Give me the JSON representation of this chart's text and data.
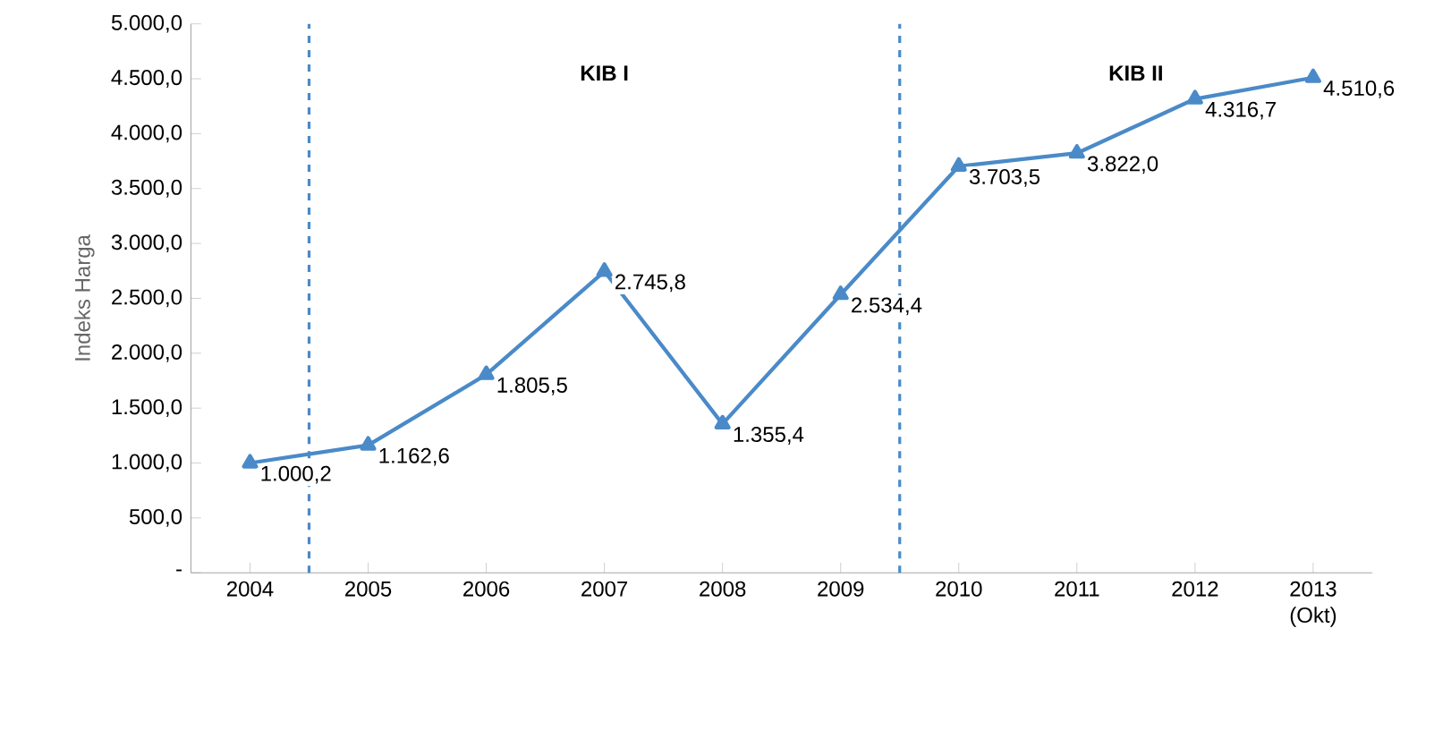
{
  "chart_data": {
    "type": "line",
    "ylabel": "Indeks Harga",
    "x": [
      2004,
      2005,
      2006,
      2007,
      2008,
      2009,
      2010,
      2011,
      2012,
      2013
    ],
    "xlim": [
      2003.5,
      2013.5
    ],
    "xticks": [
      2004,
      2005,
      2006,
      2007,
      2008,
      2009,
      2010,
      2011,
      2012,
      {
        "value": 2013,
        "label": "2013 (Okt)"
      }
    ],
    "ylim": [
      0,
      5000
    ],
    "yticks": [
      {
        "value": 0,
        "label": "-"
      },
      {
        "value": 500,
        "label": "500,0"
      },
      {
        "value": 1000,
        "label": "1.000,0"
      },
      {
        "value": 1500,
        "label": "1.500,0"
      },
      {
        "value": 2000,
        "label": "2.000,0"
      },
      {
        "value": 2500,
        "label": "2.500,0"
      },
      {
        "value": 3000,
        "label": "3.000,0"
      },
      {
        "value": 3500,
        "label": "3.500,0"
      },
      {
        "value": 4000,
        "label": "4.000,0"
      },
      {
        "value": 4500,
        "label": "4.500,0"
      },
      {
        "value": 5000,
        "label": "5.000,0"
      }
    ],
    "series": [
      {
        "color": "#4a8ac8",
        "values": [
          1000.2,
          1162.6,
          1805.5,
          2745.8,
          1355.4,
          2534.4,
          3703.5,
          3822.0,
          4316.7,
          4510.6
        ],
        "value_labels": [
          "1.000,2",
          "1.162,6",
          "1.805,5",
          "2.745,8",
          "1.355,4",
          "2.534,4",
          "3.703,5",
          "3.822,0",
          "4.316,7",
          "4.510,6"
        ]
      }
    ],
    "ref_lines": [
      {
        "axis": "x",
        "value": 2004.5,
        "color": "#4a8ac8",
        "line_style": "dashed"
      },
      {
        "axis": "x",
        "value": 2009.5,
        "color": "#4a8ac8",
        "line_style": "dashed"
      }
    ],
    "annotations": [
      "KIB I",
      "KIB II"
    ],
    "marker": "triangle",
    "line_style": "solid"
  }
}
